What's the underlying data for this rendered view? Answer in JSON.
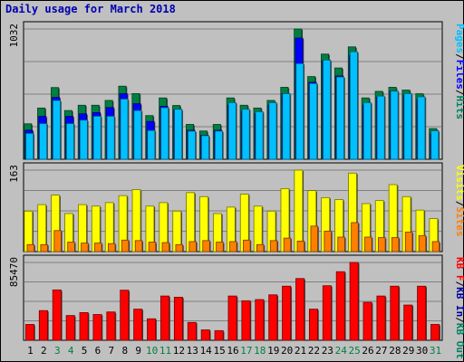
{
  "chart_data": {
    "type": "bar",
    "title": "Daily usage for March 2018",
    "days": [
      "1",
      "2",
      "3",
      "4",
      "5",
      "6",
      "7",
      "8",
      "9",
      "10",
      "11",
      "12",
      "13",
      "14",
      "15",
      "16",
      "17",
      "18",
      "19",
      "20",
      "21",
      "22",
      "23",
      "24",
      "25",
      "26",
      "27",
      "28",
      "29",
      "30",
      "31"
    ],
    "weekend_days": [
      "3",
      "4",
      "10",
      "11",
      "17",
      "18",
      "24",
      "25",
      "31"
    ],
    "colors": {
      "pages": "#008040",
      "files": "#0000ff",
      "hits": "#00c0ff",
      "visits": "#ffff00",
      "sites": "#ff8000",
      "kb_in": "#0000a0",
      "kb_out": "#008060",
      "kb_f": "#ff0000",
      "weekend_label": "#008040",
      "weekday_label": "#000000",
      "title": "#0000b0"
    },
    "panels": [
      {
        "name": "top",
        "y_max_label": "1032",
        "ymax": 1032,
        "legend": [
          {
            "text": "Pages",
            "color": "#00c0ff"
          },
          {
            "text": "/",
            "color": "#000000"
          },
          {
            "text": "Files",
            "color": "#0000ff"
          },
          {
            "text": "/",
            "color": "#000000"
          },
          {
            "text": "Hits",
            "color": "#008060"
          }
        ],
        "series": [
          {
            "name": "Hits",
            "color": "#008040",
            "values": [
              281,
              406,
              568,
              386,
              428,
              428,
              466,
              579,
              520,
              346,
              486,
              426,
              276,
              224,
              276,
              486,
              428,
              406,
              466,
              570,
              1032,
              655,
              833,
              723,
              890,
              486,
              538,
              570,
              548,
              519,
              243
            ]
          },
          {
            "name": "Files",
            "color": "#0000ff",
            "values": [
              230,
              340,
              490,
              340,
              360,
              370,
              410,
              520,
              440,
              300,
              420,
              390,
              230,
              190,
              230,
              430,
              380,
              360,
              430,
              520,
              960,
              610,
              780,
              660,
              820,
              430,
              490,
              540,
              510,
              470,
              200
            ]
          },
          {
            "name": "Pages",
            "color": "#00c0ff",
            "values": [
              205,
              283,
              466,
              283,
              310,
              341,
              341,
              477,
              386,
              228,
              409,
              396,
              223,
              187,
              223,
              449,
              396,
              377,
              449,
              520,
              758,
              600,
              786,
              652,
              852,
              449,
              501,
              540,
              520,
              495,
              226
            ]
          }
        ]
      },
      {
        "name": "middle",
        "y_max_label": "163",
        "ymax": 163,
        "legend": [
          {
            "text": "Visits",
            "color": "#ffff00"
          },
          {
            "text": "/",
            "color": "#000000"
          },
          {
            "text": "Sites",
            "color": "#ff8000"
          }
        ],
        "series": [
          {
            "name": "Visits",
            "color": "#ffff00",
            "values": [
              81,
              94,
              113,
              76,
              94,
              91,
              98,
              112,
              124,
              91,
              98,
              81,
              118,
              110,
              76,
              89,
              115,
              91,
              81,
              126,
              163,
              122,
              108,
              104,
              157,
              96,
              102,
              134,
              110,
              83,
              66
            ]
          },
          {
            "name": "Sites",
            "color": "#ff8000",
            "values": [
              14,
              14,
              42,
              19,
              17,
              17,
              16,
              23,
              22,
              19,
              18,
              14,
              20,
              22,
              19,
              20,
              23,
              14,
              22,
              27,
              21,
              51,
              41,
              29,
              58,
              29,
              28,
              28,
              39,
              32,
              20
            ]
          }
        ]
      },
      {
        "name": "bottom",
        "y_max_label": "85470",
        "ymax": 85470,
        "legend": [
          {
            "text": "KB F",
            "color": "#ff0000"
          },
          {
            "text": "/",
            "color": "#000000"
          },
          {
            "text": "KB In",
            "color": "#0000a0"
          },
          {
            "text": "/",
            "color": "#000000"
          },
          {
            "text": "KB Out",
            "color": "#008060"
          }
        ],
        "series": [
          {
            "name": "KB F",
            "color": "#ff0000",
            "values": [
              17400,
              32600,
              55300,
              27200,
              30400,
              28300,
              31100,
              55000,
              34200,
              23600,
              48600,
              47300,
              19600,
              11400,
              10600,
              48600,
              43400,
              44700,
              49900,
              59400,
              67800,
              34200,
              59900,
              75300,
              85470,
              41700,
              48600,
              59400,
              38700,
              59400,
              17400
            ]
          }
        ]
      }
    ]
  }
}
